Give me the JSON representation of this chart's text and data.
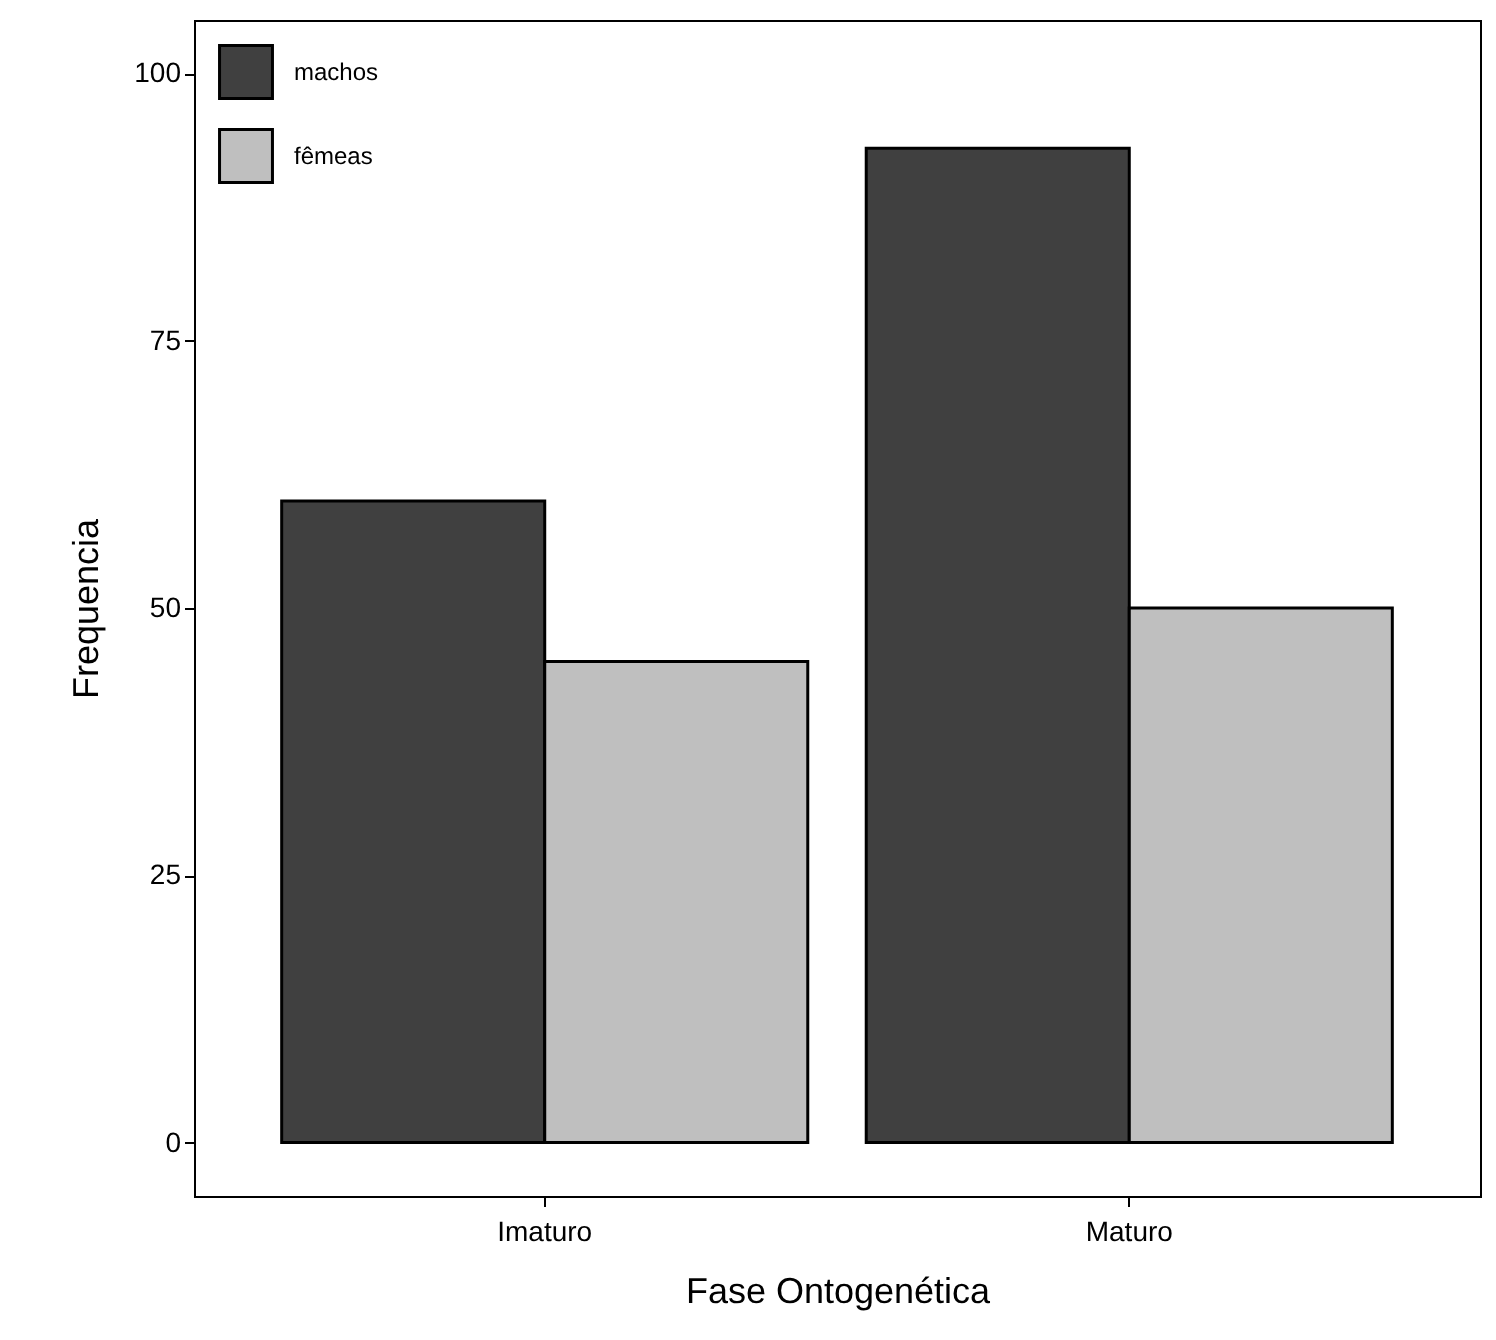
{
  "chart_data": {
    "type": "bar",
    "xlabel": "Fase Ontogenética",
    "ylabel": "Frequencia",
    "categories": [
      "Imaturo",
      "Maturo"
    ],
    "series": [
      {
        "name": "machos",
        "color": "#404040",
        "values": [
          60,
          93
        ]
      },
      {
        "name": "fêmeas",
        "color": "#bfbfbf",
        "values": [
          45,
          50
        ]
      }
    ],
    "ylim": [
      -5,
      105
    ],
    "yticks": [
      0,
      25,
      50,
      75,
      100
    ],
    "grid": false,
    "legend": "top left"
  }
}
